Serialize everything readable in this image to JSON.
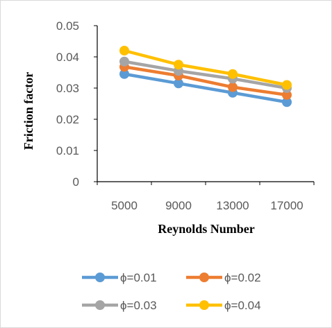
{
  "chart_data": {
    "type": "line",
    "categories": [
      "5000",
      "9000",
      "13000",
      "17000"
    ],
    "xlabel": "Reynolds Number",
    "ylabel": "Friction factor",
    "ylim": [
      0,
      0.05
    ],
    "yticks": [
      "0",
      "0.01",
      "0.02",
      "0.03",
      "0.04",
      "0.05"
    ],
    "grid": false,
    "legend_position": "bottom",
    "series": [
      {
        "name": "ϕ=0.01",
        "color": "#5b9bd5",
        "values": [
          0.0345,
          0.0315,
          0.0285,
          0.0255
        ]
      },
      {
        "name": "ϕ=0.02",
        "color": "#ed7d31",
        "values": [
          0.0368,
          0.034,
          0.0303,
          0.0278
        ]
      },
      {
        "name": "ϕ=0.03",
        "color": "#a5a5a5",
        "values": [
          0.0385,
          0.0355,
          0.033,
          0.03
        ]
      },
      {
        "name": "ϕ=0.04",
        "color": "#ffc000",
        "values": [
          0.042,
          0.0375,
          0.0345,
          0.031
        ]
      }
    ]
  }
}
